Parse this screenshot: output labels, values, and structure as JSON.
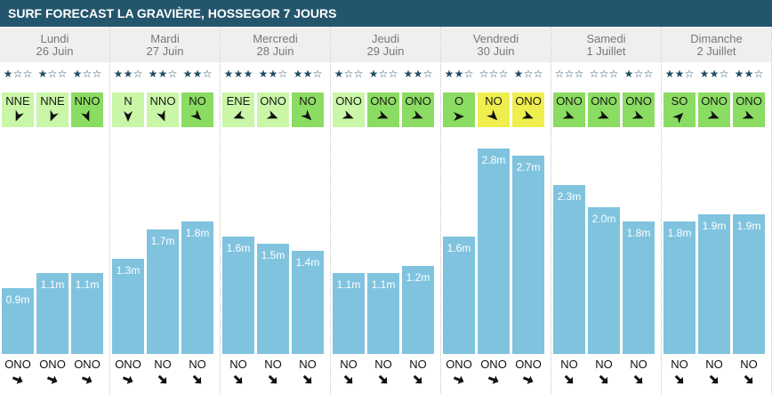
{
  "colors": {
    "title_bg": "#23566d",
    "title_text": "#ffffff",
    "head_bg": "#efefef",
    "head_text": "#787878",
    "star": "#1f4c64",
    "bar": "#80c3df",
    "bar_text": "#ffffff",
    "arrow": "#111111",
    "separator": "#c4c4c4"
  },
  "icons": {
    "star_filled": "star-filled-icon",
    "star_empty": "star-empty-icon",
    "wind_arrow": "wind-arrow-icon",
    "swell_arrow": "swell-arrow-icon"
  },
  "chart_data": {
    "type": "bar",
    "title": "SURF FORECAST LA GRAVIÈRE, HOSSEGOR 7 JOURS",
    "ylim": [
      0,
      3
    ],
    "categories": [
      {
        "day": "Lundi",
        "date": "26 Juin"
      },
      {
        "day": "Mardi",
        "date": "27 Juin"
      },
      {
        "day": "Mercredi",
        "date": "28 Juin"
      },
      {
        "day": "Jeudi",
        "date": "29 Juin"
      },
      {
        "day": "Vendredi",
        "date": "30 Juin"
      },
      {
        "day": "Samedi",
        "date": "1 Juillet"
      },
      {
        "day": "Dimanche",
        "date": "2 Juillet"
      }
    ],
    "values": [
      [
        0.9,
        1.1,
        1.1
      ],
      [
        1.3,
        1.7,
        1.8
      ],
      [
        1.6,
        1.5,
        1.4
      ],
      [
        1.1,
        1.1,
        1.2
      ],
      [
        1.6,
        2.8,
        2.7
      ],
      [
        2.3,
        2.0,
        1.8
      ],
      [
        1.8,
        1.9,
        1.9
      ]
    ],
    "labels": [
      [
        "0.9m",
        "1.1m",
        "1.1m"
      ],
      [
        "1.3m",
        "1.7m",
        "1.8m"
      ],
      [
        "1.6m",
        "1.5m",
        "1.4m"
      ],
      [
        "1.1m",
        "1.1m",
        "1.2m"
      ],
      [
        "1.6m",
        "2.8m",
        "2.7m"
      ],
      [
        "2.3m",
        "2.0m",
        "1.8m"
      ],
      [
        "1.8m",
        "1.9m",
        "1.9m"
      ]
    ]
  },
  "conditions": [
    {
      "stars": [
        1,
        1,
        1
      ],
      "wind": [
        {
          "dir": "NNE",
          "color": "#c9f6a7"
        },
        {
          "dir": "NNE",
          "color": "#c9f6a7"
        },
        {
          "dir": "NNO",
          "color": "#8bdc62"
        }
      ],
      "swell": [
        "ONO",
        "ONO",
        "ONO"
      ]
    },
    {
      "stars": [
        2,
        2,
        2
      ],
      "wind": [
        {
          "dir": "N",
          "color": "#c9f6a7"
        },
        {
          "dir": "NNO",
          "color": "#c9f6a7"
        },
        {
          "dir": "NO",
          "color": "#8bdc62"
        }
      ],
      "swell": [
        "ONO",
        "NO",
        "NO"
      ]
    },
    {
      "stars": [
        3,
        2,
        2
      ],
      "wind": [
        {
          "dir": "ENE",
          "color": "#c9f6a7"
        },
        {
          "dir": "ONO",
          "color": "#c9f6a7"
        },
        {
          "dir": "NO",
          "color": "#8bdc62"
        }
      ],
      "swell": [
        "NO",
        "NO",
        "NO"
      ]
    },
    {
      "stars": [
        1,
        1,
        2
      ],
      "wind": [
        {
          "dir": "ONO",
          "color": "#c9f6a7"
        },
        {
          "dir": "ONO",
          "color": "#8bdc62"
        },
        {
          "dir": "ONO",
          "color": "#8bdc62"
        }
      ],
      "swell": [
        "NO",
        "NO",
        "NO"
      ]
    },
    {
      "stars": [
        2,
        0,
        1
      ],
      "wind": [
        {
          "dir": "O",
          "color": "#8bdc62"
        },
        {
          "dir": "NO",
          "color": "#eeee4e"
        },
        {
          "dir": "ONO",
          "color": "#eeee4e"
        }
      ],
      "swell": [
        "ONO",
        "ONO",
        "ONO"
      ]
    },
    {
      "stars": [
        0,
        0,
        1
      ],
      "wind": [
        {
          "dir": "ONO",
          "color": "#8bdc62"
        },
        {
          "dir": "ONO",
          "color": "#8bdc62"
        },
        {
          "dir": "ONO",
          "color": "#8bdc62"
        }
      ],
      "swell": [
        "NO",
        "NO",
        "NO"
      ]
    },
    {
      "stars": [
        2,
        2,
        2
      ],
      "wind": [
        {
          "dir": "SO",
          "color": "#8bdc62"
        },
        {
          "dir": "ONO",
          "color": "#8bdc62"
        },
        {
          "dir": "ONO",
          "color": "#8bdc62"
        }
      ],
      "swell": [
        "NO",
        "NO",
        "NO"
      ]
    }
  ]
}
